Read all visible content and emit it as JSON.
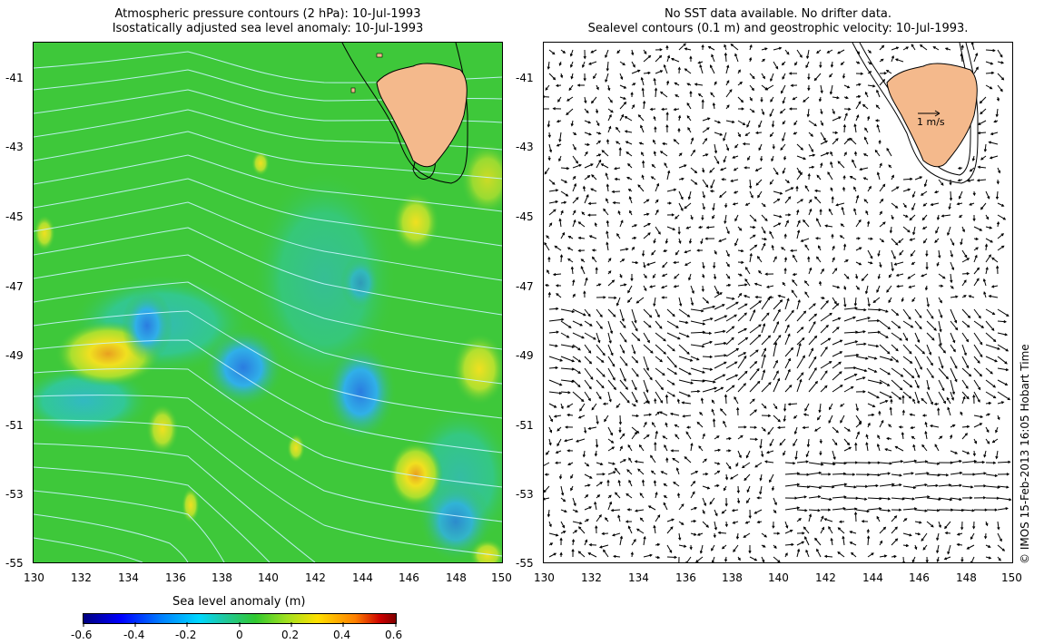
{
  "left_panel": {
    "title_line1": "Atmospheric pressure contours (2 hPa): 10-Jul-1993",
    "title_line2": "Isostatically adjusted sea level anomaly: 10-Jul-1993",
    "lon_ticks": [
      "130",
      "132",
      "134",
      "136",
      "138",
      "140",
      "142",
      "144",
      "146",
      "148",
      "150"
    ],
    "lat_ticks": [
      "-41",
      "-43",
      "-45",
      "-47",
      "-49",
      "-51",
      "-53",
      "-55"
    ]
  },
  "right_panel": {
    "title_line1": "No SST data available.  No drifter data.",
    "title_line2": "Sealevel contours (0.1 m) and geostrophic velocity: 10-Jul-1993.",
    "lon_ticks": [
      "130",
      "132",
      "134",
      "136",
      "138",
      "140",
      "142",
      "144",
      "146",
      "148",
      "150"
    ],
    "lat_ticks": [
      "-41",
      "-43",
      "-45",
      "-47",
      "-49",
      "-51",
      "-53",
      "-55"
    ],
    "scale_label": "1 m/s"
  },
  "colorbar": {
    "label": "Sea level anomaly (m)",
    "ticks": [
      "-0.6",
      "-0.4",
      "-0.2",
      "0",
      "0.2",
      "0.4",
      "0.6"
    ]
  },
  "copyright": "© IMOS 15-Feb-2013 16:05 Hobart Time",
  "colors": {
    "land": "#f4b98c",
    "sla_background": "#3ec83a",
    "pressure_contour": "#b8f0ff",
    "vector": "#000000"
  },
  "map_data": {
    "lon_range": [
      130,
      150
    ],
    "lat_range": [
      -55,
      -40
    ],
    "landmass": "Tasmania",
    "sla_features": [
      {
        "lon": 132.8,
        "lat": -49.1,
        "sla": 0.42
      },
      {
        "lon": 135.0,
        "lat": -48.2,
        "sla": -0.25
      },
      {
        "lon": 139.0,
        "lat": -49.4,
        "sla": -0.3
      },
      {
        "lon": 144.2,
        "lat": -50.3,
        "sla": -0.28
      },
      {
        "lon": 146.3,
        "lat": -52.4,
        "sla": 0.3
      },
      {
        "lon": 146.3,
        "lat": -45.2,
        "sla": 0.22
      },
      {
        "lon": 135.5,
        "lat": -51.1,
        "sla": 0.2
      },
      {
        "lon": 131.0,
        "lat": -50.2,
        "sla": -0.15
      },
      {
        "lon": 148.8,
        "lat": -53.8,
        "sla": -0.18
      }
    ]
  }
}
